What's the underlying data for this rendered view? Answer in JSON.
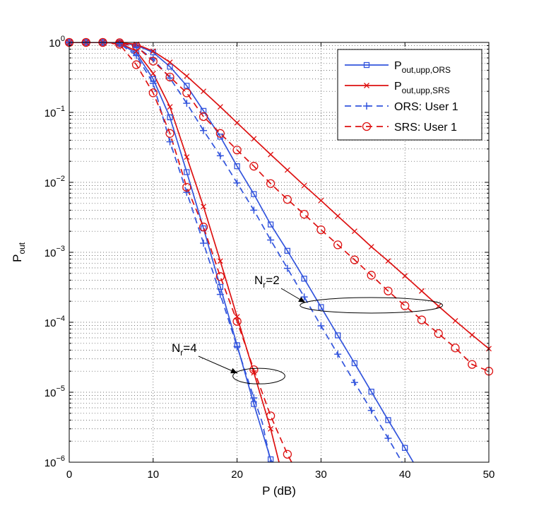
{
  "chart_data": {
    "type": "line",
    "xlabel": "P (dB)",
    "ylabel": {
      "base": "P",
      "sub": "out"
    },
    "xlim": [
      0,
      50
    ],
    "ylim": [
      1e-06,
      1
    ],
    "yscale": "log",
    "grid": "dotted, major and minor",
    "x_ticks": [
      "0",
      "10",
      "20",
      "30",
      "40",
      "50"
    ],
    "y_ticks": [
      {
        "base": "10",
        "exp": "0"
      },
      {
        "base": "10",
        "exp": "−1"
      },
      {
        "base": "10",
        "exp": "−2"
      },
      {
        "base": "10",
        "exp": "−3"
      },
      {
        "base": "10",
        "exp": "−4"
      },
      {
        "base": "10",
        "exp": "−5"
      },
      {
        "base": "10",
        "exp": "−6"
      }
    ],
    "legend_position": "top-right",
    "legend": [
      {
        "label": "P",
        "sub": "out,upp,ORS",
        "color": "#3355dd",
        "dash": "solid",
        "marker": "square"
      },
      {
        "label": "P",
        "sub": "out,upp,SRS",
        "color": "#dd1111",
        "dash": "solid",
        "marker": "x"
      },
      {
        "label": "ORS: User 1",
        "sub": "",
        "color": "#3355dd",
        "dash": "dashed",
        "marker": "plus"
      },
      {
        "label": "SRS: User 1",
        "sub": "",
        "color": "#dd1111",
        "dash": "dashed",
        "marker": "circle"
      }
    ],
    "annotations": [
      {
        "text": "N",
        "sub": "r",
        "suffix": "=2",
        "ellipse_center": [
          36,
          0.000175
        ],
        "ellipse_x_range": [
          28,
          45
        ]
      },
      {
        "text": "N",
        "sub": "r",
        "suffix": "=4",
        "ellipse_center": [
          22.6,
          1.7e-05
        ],
        "ellipse_x_range": [
          19.5,
          25.7
        ]
      }
    ],
    "series": [
      {
        "group": "Nr=2",
        "legend_index": 0,
        "points": [
          [
            0,
            1
          ],
          [
            2,
            1
          ],
          [
            4,
            1
          ],
          [
            6,
            0.99
          ],
          [
            8,
            0.91
          ],
          [
            10,
            0.72
          ],
          [
            12,
            0.45
          ],
          [
            14,
            0.24
          ],
          [
            16,
            0.105
          ],
          [
            18,
            0.045
          ],
          [
            20,
            0.017
          ],
          [
            22,
            0.0068
          ],
          [
            24,
            0.0025
          ],
          [
            26,
            0.00105
          ],
          [
            28,
            0.00042
          ],
          [
            30,
            0.000165
          ],
          [
            32,
            6.5e-05
          ],
          [
            34,
            2.6e-05
          ],
          [
            36,
            1.02e-05
          ],
          [
            38,
            4e-06
          ],
          [
            40,
            1.6e-06
          ],
          [
            41,
            1e-06
          ]
        ]
      },
      {
        "group": "Nr=2",
        "legend_index": 1,
        "points": [
          [
            0,
            1
          ],
          [
            2,
            1
          ],
          [
            4,
            1
          ],
          [
            6,
            0.99
          ],
          [
            8,
            0.94
          ],
          [
            10,
            0.75
          ],
          [
            12,
            0.52
          ],
          [
            14,
            0.33
          ],
          [
            16,
            0.2
          ],
          [
            18,
            0.12
          ],
          [
            20,
            0.071
          ],
          [
            22,
            0.042
          ],
          [
            24,
            0.025
          ],
          [
            26,
            0.015
          ],
          [
            28,
            0.009
          ],
          [
            30,
            0.0055
          ],
          [
            32,
            0.0033
          ],
          [
            34,
            0.002
          ],
          [
            36,
            0.0012
          ],
          [
            38,
            0.00075
          ],
          [
            40,
            0.00046
          ],
          [
            42,
            0.00028
          ],
          [
            44,
            0.00017
          ],
          [
            46,
            0.000105
          ],
          [
            48,
            6.6e-05
          ],
          [
            50,
            4.2e-05
          ]
        ]
      },
      {
        "group": "Nr=2",
        "legend_index": 2,
        "points": [
          [
            0,
            1
          ],
          [
            2,
            1
          ],
          [
            4,
            1
          ],
          [
            6,
            0.98
          ],
          [
            8,
            0.86
          ],
          [
            10,
            0.58
          ],
          [
            12,
            0.31
          ],
          [
            14,
            0.135
          ],
          [
            16,
            0.055
          ],
          [
            18,
            0.024
          ],
          [
            20,
            0.0098
          ],
          [
            22,
            0.004
          ],
          [
            24,
            0.0015
          ],
          [
            26,
            0.00059
          ],
          [
            28,
            0.00023
          ],
          [
            30,
            8.9e-05
          ],
          [
            32,
            3.5e-05
          ],
          [
            34,
            1.38e-05
          ],
          [
            36,
            5.5e-06
          ],
          [
            38,
            2.2e-06
          ],
          [
            40,
            8.5e-07
          ]
        ]
      },
      {
        "group": "Nr=2",
        "legend_index": 3,
        "points": [
          [
            0,
            1
          ],
          [
            2,
            1
          ],
          [
            4,
            1
          ],
          [
            6,
            0.99
          ],
          [
            8,
            0.88
          ],
          [
            10,
            0.54
          ],
          [
            12,
            0.32
          ],
          [
            14,
            0.19
          ],
          [
            16,
            0.087
          ],
          [
            18,
            0.05
          ],
          [
            20,
            0.029
          ],
          [
            22,
            0.017
          ],
          [
            24,
            0.0096
          ],
          [
            26,
            0.0057
          ],
          [
            28,
            0.0035
          ],
          [
            30,
            0.0021
          ],
          [
            32,
            0.00128
          ],
          [
            34,
            0.00078
          ],
          [
            36,
            0.00047
          ],
          [
            38,
            0.00028
          ],
          [
            40,
            0.000172
          ],
          [
            42,
            0.000108
          ],
          [
            44,
            6.9e-05
          ],
          [
            46,
            4.3e-05
          ],
          [
            48,
            2.5e-05
          ],
          [
            50,
            2e-05
          ]
        ]
      },
      {
        "group": "Nr=4",
        "legend_index": 0,
        "points": [
          [
            0,
            1
          ],
          [
            2,
            1
          ],
          [
            4,
            1
          ],
          [
            6,
            0.97
          ],
          [
            8,
            0.7
          ],
          [
            10,
            0.3
          ],
          [
            12,
            0.085
          ],
          [
            14,
            0.014
          ],
          [
            16,
            0.0022
          ],
          [
            18,
            0.00032
          ],
          [
            20,
            4.7e-05
          ],
          [
            22,
            6.8e-06
          ],
          [
            24,
            1.1e-06
          ],
          [
            24.2,
            1e-06
          ]
        ]
      },
      {
        "group": "Nr=4",
        "legend_index": 1,
        "points": [
          [
            0,
            1
          ],
          [
            2,
            1
          ],
          [
            4,
            1
          ],
          [
            6,
            0.98
          ],
          [
            8,
            0.75
          ],
          [
            10,
            0.36
          ],
          [
            12,
            0.12
          ],
          [
            14,
            0.023
          ],
          [
            16,
            0.0045
          ],
          [
            18,
            0.00075
          ],
          [
            20,
            0.00012
          ],
          [
            22,
            1.9e-05
          ],
          [
            24,
            3e-06
          ],
          [
            25,
            1e-06
          ]
        ]
      },
      {
        "group": "Nr=4",
        "legend_index": 2,
        "points": [
          [
            0,
            1
          ],
          [
            2,
            1
          ],
          [
            4,
            1
          ],
          [
            6,
            0.96
          ],
          [
            8,
            0.65
          ],
          [
            10,
            0.26
          ],
          [
            12,
            0.038
          ],
          [
            14,
            0.0072
          ],
          [
            16,
            0.00135
          ],
          [
            18,
            0.00025
          ],
          [
            20,
            4.5e-05
          ],
          [
            22,
            8.3e-06
          ],
          [
            23,
            3.7e-06
          ],
          [
            24,
            1e-06
          ]
        ]
      },
      {
        "group": "Nr=4",
        "legend_index": 3,
        "points": [
          [
            0,
            1
          ],
          [
            2,
            1
          ],
          [
            4,
            1
          ],
          [
            6,
            0.94
          ],
          [
            8,
            0.48
          ],
          [
            10,
            0.19
          ],
          [
            12,
            0.05
          ],
          [
            14,
            0.0085
          ],
          [
            16,
            0.0023
          ],
          [
            18,
            0.00045
          ],
          [
            20,
            0.000103
          ],
          [
            22,
            2.1e-05
          ],
          [
            24,
            4.6e-06
          ],
          [
            26,
            1.3e-06
          ],
          [
            26.5,
            1e-06
          ]
        ]
      }
    ]
  }
}
